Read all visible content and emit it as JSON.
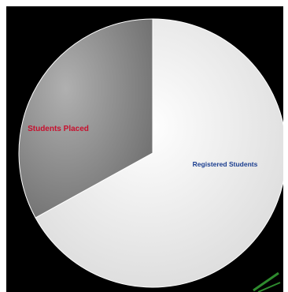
{
  "chart_data": {
    "type": "pie",
    "slices": [
      {
        "label": "Registered Students",
        "value": 67,
        "color": "#eeeeee",
        "label_color": "#1a3d8f"
      },
      {
        "label": "Students Placed",
        "value": 33,
        "color": "#8e8e8e",
        "label_color": "#c8102e"
      }
    ],
    "start_angle_deg": 0,
    "direction": "clockwise",
    "legend": "none",
    "background": "#000000"
  }
}
